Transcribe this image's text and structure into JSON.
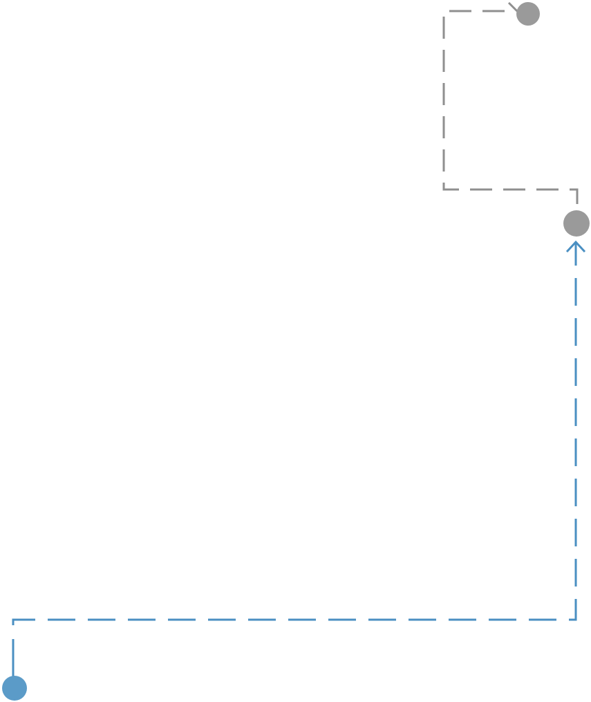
{
  "diagram": {
    "background": "#ffffff",
    "connectors": [
      {
        "id": "gray-link",
        "from": "top-node",
        "to": "right-node",
        "color": "#8f8f8f",
        "style": "dashed",
        "arrowhead": "none"
      },
      {
        "id": "blue-link",
        "from": "bottom-left-node",
        "to": "right-node",
        "color": "#4a8fc2",
        "style": "dashed",
        "arrowhead": "open-chevron"
      }
    ],
    "nodes": [
      {
        "id": "top-node",
        "color": "#9a9a9a",
        "shape": "circle"
      },
      {
        "id": "right-node",
        "color": "#9a9a9a",
        "shape": "circle"
      },
      {
        "id": "bottom-left-node",
        "color": "#5b9bc8",
        "shape": "circle"
      }
    ]
  }
}
